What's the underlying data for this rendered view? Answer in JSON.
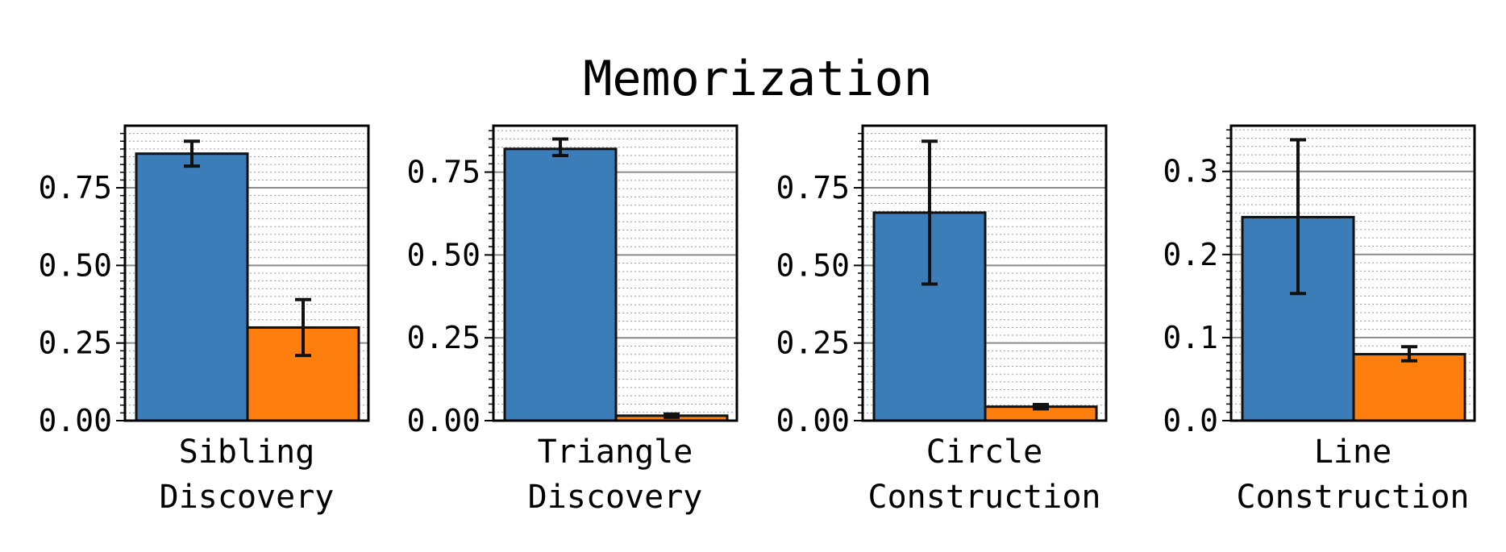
{
  "chart_data": {
    "title": "Memorization",
    "type": "bar",
    "series_colors": [
      "#3a7db8",
      "#ff7f0e"
    ],
    "grid": "horizontal major solid gray, minor dotted",
    "panels": [
      {
        "category": "Sibling\nDiscovery",
        "category_lines": [
          "Sibling",
          "Discovery"
        ],
        "ylim": [
          0,
          0.95
        ],
        "yticks": [
          0.0,
          0.25,
          0.5,
          0.75
        ],
        "ytick_labels": [
          "0.00",
          "0.25",
          "0.50",
          "0.75"
        ],
        "minor_step": 0.025,
        "values": [
          0.86,
          0.3
        ],
        "err_low": [
          0.82,
          0.21
        ],
        "err_high": [
          0.9,
          0.39
        ]
      },
      {
        "category": "Triangle\nDiscovery",
        "category_lines": [
          "Triangle",
          "Discovery"
        ],
        "ylim": [
          0,
          0.89
        ],
        "yticks": [
          0.0,
          0.25,
          0.5,
          0.75
        ],
        "ytick_labels": [
          "0.00",
          "0.25",
          "0.50",
          "0.75"
        ],
        "minor_step": 0.025,
        "values": [
          0.82,
          0.015
        ],
        "err_low": [
          0.8,
          0.01
        ],
        "err_high": [
          0.85,
          0.02
        ]
      },
      {
        "category": "Circle\nConstruction",
        "category_lines": [
          "Circle",
          "Construction"
        ],
        "ylim": [
          0,
          0.95
        ],
        "yticks": [
          0.0,
          0.25,
          0.5,
          0.75
        ],
        "ytick_labels": [
          "0.00",
          "0.25",
          "0.50",
          "0.75"
        ],
        "minor_step": 0.025,
        "values": [
          0.67,
          0.045
        ],
        "err_low": [
          0.44,
          0.038
        ],
        "err_high": [
          0.9,
          0.052
        ]
      },
      {
        "category": "Line\nConstruction",
        "category_lines": [
          "Line",
          "Construction"
        ],
        "ylim": [
          0,
          0.355
        ],
        "yticks": [
          0.0,
          0.1,
          0.2,
          0.3
        ],
        "ytick_labels": [
          "0.0",
          "0.1",
          "0.2",
          "0.3"
        ],
        "minor_step": 0.01,
        "values": [
          0.245,
          0.08
        ],
        "err_low": [
          0.153,
          0.072
        ],
        "err_high": [
          0.338,
          0.089
        ]
      }
    ]
  }
}
